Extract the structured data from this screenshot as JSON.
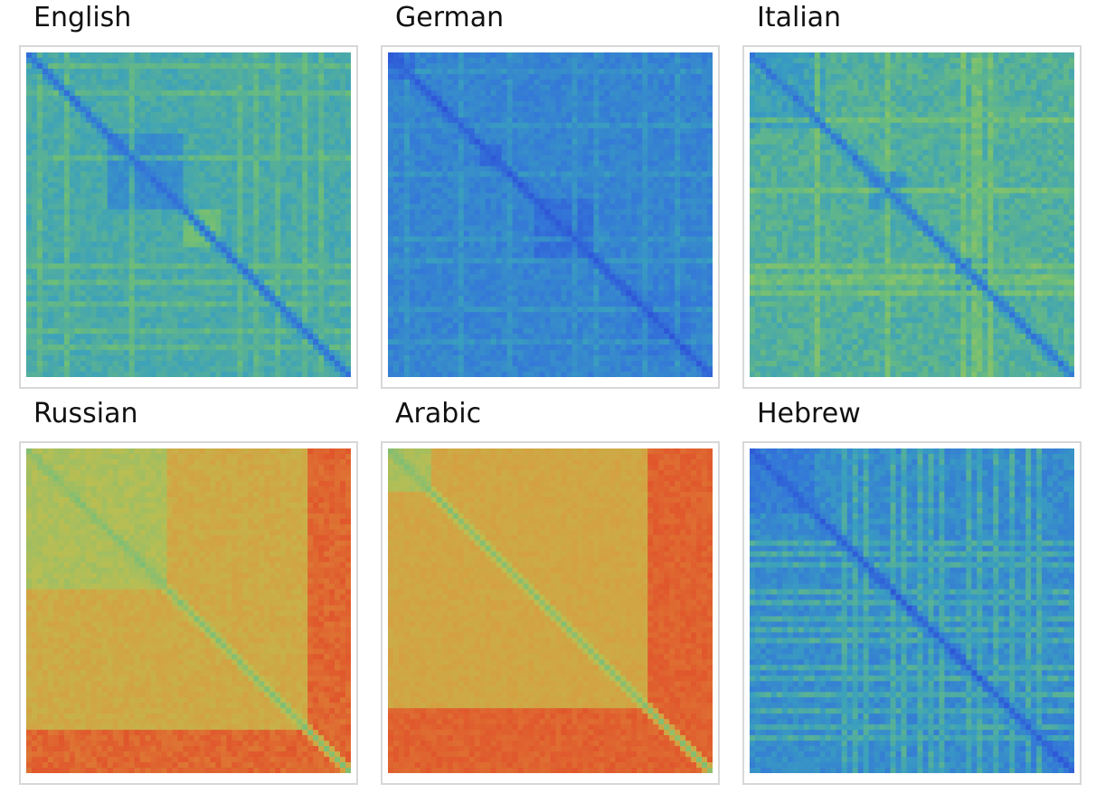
{
  "chart_data": [
    {
      "type": "heatmap",
      "title": "English",
      "palette": "parula",
      "matrix": {
        "base": 0.56,
        "diag": 0.26,
        "blocks": [
          [
            0.24,
            0.47,
            0.4
          ],
          [
            0.47,
            0.6,
            0.7
          ]
        ],
        "stripes": [
          0.04,
          0.12,
          0.32,
          0.66,
          0.72,
          0.78,
          0.86,
          0.92
        ],
        "stripe_level": 0.72,
        "noise": 0.05,
        "seed": 11
      }
    },
    {
      "type": "heatmap",
      "title": "German",
      "palette": "parula",
      "matrix": {
        "base": 0.36,
        "diag": 0.12,
        "blocks": [
          [
            0.0,
            0.08,
            0.2
          ],
          [
            0.28,
            0.34,
            0.22
          ],
          [
            0.45,
            0.62,
            0.25
          ],
          [
            0.72,
            0.92,
            0.3
          ]
        ],
        "stripes": [
          0.05,
          0.22,
          0.38,
          0.58,
          0.64,
          0.8,
          0.9
        ],
        "stripe_level": 0.5,
        "noise": 0.06,
        "seed": 23
      }
    },
    {
      "type": "heatmap",
      "title": "Italian",
      "palette": "parula",
      "matrix": {
        "base": 0.6,
        "diag": 0.3,
        "blocks": [
          [
            0.0,
            0.22,
            0.5
          ],
          [
            0.36,
            0.48,
            0.45
          ],
          [
            0.62,
            0.72,
            0.42
          ]
        ],
        "stripes": [
          0.2,
          0.42,
          0.66,
          0.7,
          0.74,
          0.72
        ],
        "stripe_level": 0.8,
        "noise": 0.07,
        "seed": 37
      }
    },
    {
      "type": "heatmap",
      "title": "Russian",
      "palette": "warm",
      "matrix": {
        "base": 0.7,
        "diag": 0.45,
        "blocks": [
          [
            0.0,
            0.43,
            0.55
          ],
          [
            0.43,
            0.86,
            0.7
          ]
        ],
        "outer": 0.86,
        "outer_level": 0.92,
        "stripes": [],
        "stripe_level": 0.7,
        "noise": 0.04,
        "seed": 41
      }
    },
    {
      "type": "heatmap",
      "title": "Arabic",
      "palette": "warm",
      "matrix": {
        "base": 0.72,
        "diag": 0.45,
        "blocks": [
          [
            0.0,
            0.8,
            0.72
          ],
          [
            0.0,
            0.12,
            0.55
          ]
        ],
        "outer": 0.8,
        "outer_level": 0.93,
        "stripes": [],
        "stripe_level": 0.7,
        "noise": 0.03,
        "seed": 53
      }
    },
    {
      "type": "heatmap",
      "title": "Hebrew",
      "palette": "parula",
      "matrix": {
        "base": 0.4,
        "diag": 0.14,
        "blocks": [
          [
            0.0,
            0.2,
            0.32
          ],
          [
            0.8,
            1.0,
            0.34
          ]
        ],
        "stripes": [
          0.28,
          0.32,
          0.36,
          0.44,
          0.48,
          0.52,
          0.56,
          0.6,
          0.68,
          0.72,
          0.76,
          0.82,
          0.86,
          0.9
        ],
        "stripe_level": 0.68,
        "noise": 0.07,
        "seed": 67
      }
    }
  ]
}
